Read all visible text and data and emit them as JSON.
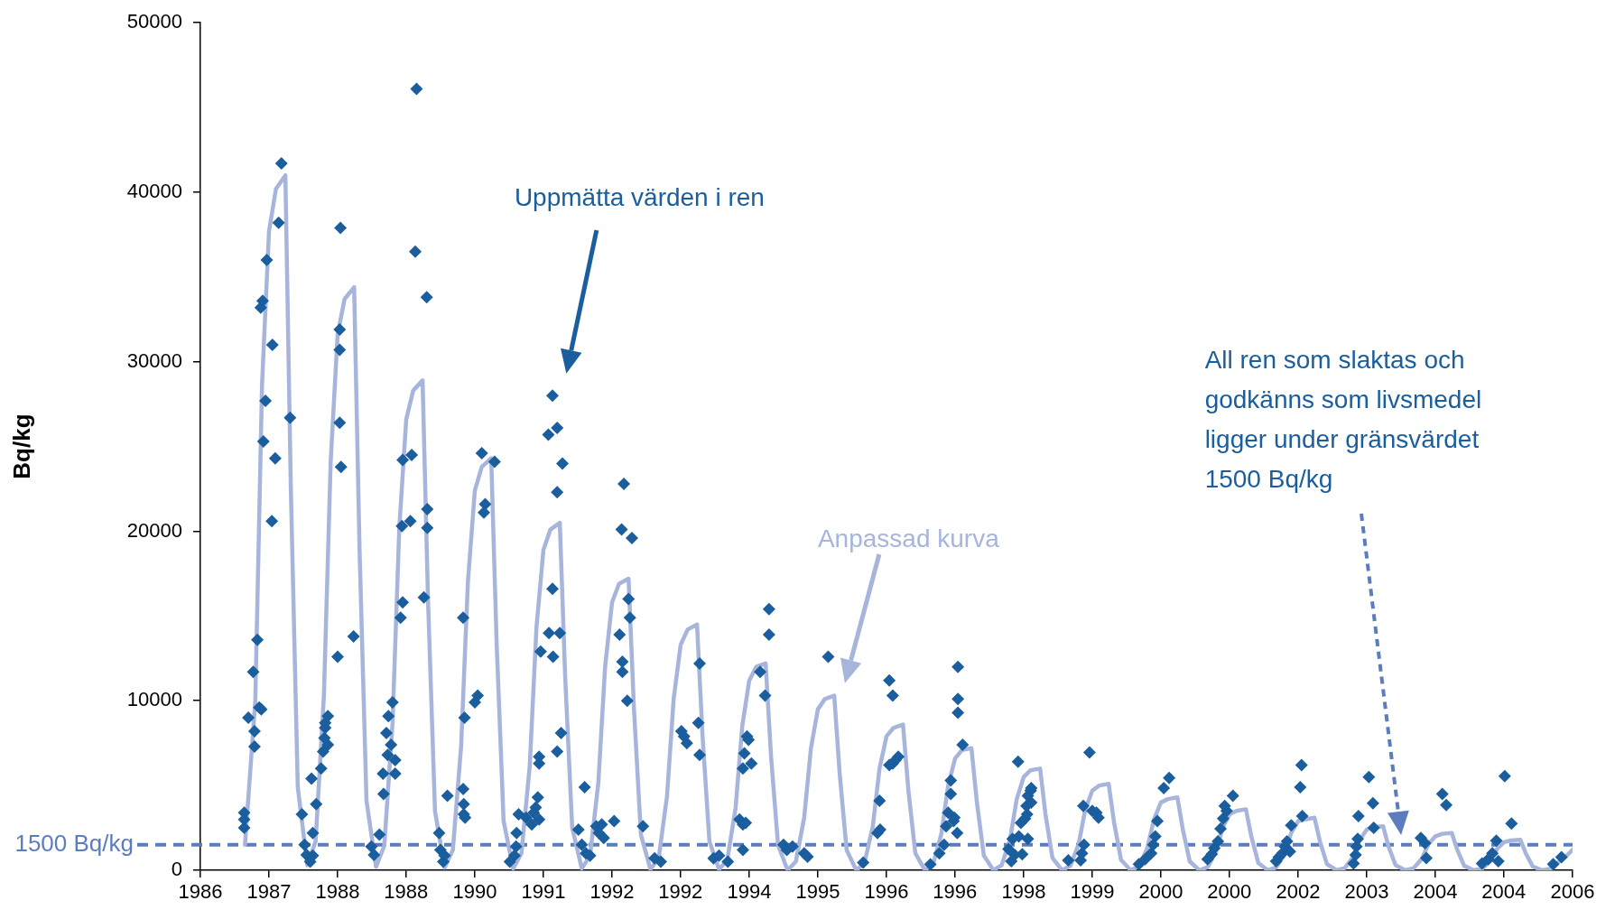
{
  "chart_data": {
    "type": "scatter",
    "ylabel": "Bq/kg",
    "legend": false,
    "grid": false,
    "marker": "diamond",
    "xlim": [
      "1986-01-01",
      "2006-01-01"
    ],
    "xticks": [
      {
        "value": "1986-01-01",
        "label": "1986"
      },
      {
        "value": "1987-01-01",
        "label": "1987"
      },
      {
        "value": "1988-01-01",
        "label": "1988"
      },
      {
        "value": "1988-12-31",
        "label": "1988"
      },
      {
        "value": "1990-01-01",
        "label": "1990"
      },
      {
        "value": "1991-01-01",
        "label": "1991"
      },
      {
        "value": "1992-01-01",
        "label": "1992"
      },
      {
        "value": "1992-12-31",
        "label": "1992"
      },
      {
        "value": "1994-01-01",
        "label": "1994"
      },
      {
        "value": "1995-01-01",
        "label": "1995"
      },
      {
        "value": "1996-01-01",
        "label": "1996"
      },
      {
        "value": "1996-12-31",
        "label": "1996"
      },
      {
        "value": "1998-01-01",
        "label": "1998"
      },
      {
        "value": "1999-01-01",
        "label": "1999"
      },
      {
        "value": "2000-01-01",
        "label": "2000"
      },
      {
        "value": "2000-12-31",
        "label": "2000"
      },
      {
        "value": "2002-01-01",
        "label": "2002"
      },
      {
        "value": "2003-01-01",
        "label": "2003"
      },
      {
        "value": "2004-01-01",
        "label": "2004"
      },
      {
        "value": "2004-12-31",
        "label": "2004"
      },
      {
        "value": "2006-01-01",
        "label": "2006"
      }
    ],
    "ylim": [
      0,
      50000
    ],
    "yticks": [
      0,
      10000,
      20000,
      30000,
      40000,
      50000
    ],
    "ref_lines": [
      {
        "axis": "y",
        "value": 1500,
        "label": "1500 Bq/kg",
        "color": "#5b7dbd",
        "line_style": "dashed"
      }
    ],
    "annotations": [
      "All ren som slaktas och godkänns som livsmedel ligger under gränsvärdet 1500 Bq/kg"
    ],
    "series": [
      {
        "name": "Anpassad kurva",
        "type": "line",
        "marker": "none",
        "line_style": "solid",
        "color": "#a7b5dc",
        "x": [
          "1986-08-26",
          "1986-10-20",
          "1986-11-25",
          "1987-01-01",
          "1987-02-07",
          "1987-03-29",
          "1987-04-27",
          "1987-06-03",
          "1987-07-24",
          "1987-09-06",
          "1987-10-20",
          "1987-11-25",
          "1988-01-01",
          "1988-02-07",
          "1988-03-29",
          "1988-04-27",
          "1988-06-03",
          "1988-07-24",
          "1988-09-06",
          "1988-10-20",
          "1988-11-25",
          "1989-01-01",
          "1989-02-07",
          "1989-03-29",
          "1989-04-27",
          "1989-06-03",
          "1989-07-24",
          "1989-09-06",
          "1989-10-20",
          "1989-11-25",
          "1990-01-01",
          "1990-02-07",
          "1990-03-29",
          "1990-04-27",
          "1990-06-03",
          "1990-07-24",
          "1990-09-06",
          "1990-10-20",
          "1990-11-25",
          "1991-01-01",
          "1991-02-07",
          "1991-03-29",
          "1991-04-27",
          "1991-06-03",
          "1991-07-24",
          "1991-09-06",
          "1991-10-20",
          "1991-11-25",
          "1992-01-01",
          "1992-02-07",
          "1992-03-29",
          "1992-04-27",
          "1992-06-03",
          "1992-07-24",
          "1992-09-06",
          "1992-10-20",
          "1992-11-25",
          "1993-01-01",
          "1993-02-07",
          "1993-03-29",
          "1993-04-27",
          "1993-06-03",
          "1993-07-24",
          "1993-09-06",
          "1993-10-20",
          "1993-11-25",
          "1994-01-01",
          "1994-02-07",
          "1994-03-29",
          "1994-04-27",
          "1994-06-03",
          "1994-07-24",
          "1994-09-06",
          "1994-10-20",
          "1994-11-25",
          "1995-01-01",
          "1995-02-07",
          "1995-03-29",
          "1995-04-27",
          "1995-06-03",
          "1995-07-24",
          "1995-09-06",
          "1995-10-20",
          "1995-11-25",
          "1996-01-01",
          "1996-02-07",
          "1996-03-29",
          "1996-04-27",
          "1996-06-03",
          "1996-07-24",
          "1996-09-06",
          "1996-10-20",
          "1996-11-25",
          "1997-01-01",
          "1997-02-07",
          "1997-03-29",
          "1997-04-27",
          "1997-06-03",
          "1997-07-24",
          "1997-09-06",
          "1997-10-20",
          "1997-11-25",
          "1998-01-01",
          "1998-02-07",
          "1998-03-29",
          "1998-04-27",
          "1998-06-03",
          "1998-07-24",
          "1998-09-06",
          "1998-10-20",
          "1998-11-25",
          "1999-01-01",
          "1999-02-07",
          "1999-03-29",
          "1999-04-27",
          "1999-06-03",
          "1999-07-24",
          "1999-09-06",
          "1999-10-20",
          "1999-11-25",
          "2000-01-01",
          "2000-02-07",
          "2000-03-29",
          "2000-04-27",
          "2000-06-03",
          "2000-07-24",
          "2000-09-06",
          "2000-10-20",
          "2000-11-25",
          "2001-01-01",
          "2001-02-07",
          "2001-03-29",
          "2001-04-27",
          "2001-06-03",
          "2001-07-24",
          "2001-09-06",
          "2001-10-20",
          "2001-11-25",
          "2002-01-01",
          "2002-02-07",
          "2002-03-29",
          "2002-04-27",
          "2002-06-03",
          "2002-07-24",
          "2002-09-06",
          "2002-10-20",
          "2002-11-25",
          "2003-01-01",
          "2003-02-07",
          "2003-03-29",
          "2003-04-27",
          "2003-06-03",
          "2003-07-24",
          "2003-09-06",
          "2003-10-20",
          "2003-11-25",
          "2004-01-01",
          "2004-02-07",
          "2004-03-29",
          "2004-04-27",
          "2004-06-03",
          "2004-07-24",
          "2004-09-06",
          "2004-10-20",
          "2004-11-25",
          "2005-01-01",
          "2005-02-07",
          "2005-03-29",
          "2005-04-27",
          "2005-06-03",
          "2005-07-24",
          "2005-09-06",
          "2005-10-20",
          "2005-11-25",
          "2006-01-01"
        ],
        "values": [
          1500,
          10000,
          28700,
          37700,
          40200,
          41000,
          22550,
          4900,
          300,
          1720,
          10300,
          24100,
          31600,
          33700,
          34400,
          18900,
          4100,
          200,
          1450,
          8700,
          20200,
          26600,
          28300,
          28900,
          15900,
          3500,
          150,
          1200,
          7300,
          17000,
          22400,
          23800,
          24300,
          13400,
          2900,
          100,
          1000,
          6150,
          14350,
          18900,
          20100,
          20500,
          11300,
          2500,
          100,
          860,
          5160,
          12000,
          15800,
          16900,
          17200,
          9500,
          2100,
          50,
          730,
          4350,
          10150,
          13300,
          14200,
          14500,
          8000,
          1700,
          50,
          610,
          3660,
          8540,
          11200,
          12000,
          12200,
          6700,
          1500,
          0,
          520,
          3090,
          7200,
          9500,
          10100,
          10300,
          5700,
          1200,
          0,
          430,
          2580,
          6000,
          7900,
          8400,
          8600,
          4700,
          1000,
          0,
          360,
          2160,
          5000,
          6600,
          7100,
          7200,
          4000,
          860,
          0,
          300,
          1800,
          4200,
          5500,
          5900,
          6000,
          3300,
          720,
          0,
          260,
          1530,
          3600,
          4700,
          5000,
          5100,
          2800,
          610,
          0,
          220,
          1290,
          3000,
          4000,
          4200,
          4300,
          2400,
          520,
          0,
          180,
          1080,
          2500,
          3300,
          3500,
          3600,
          2000,
          430,
          0,
          160,
          930,
          2200,
          2900,
          3000,
          3100,
          1700,
          370,
          0,
          130,
          780,
          1800,
          2400,
          2550,
          2600,
          1400,
          310,
          0,
          110,
          660,
          1540,
          2000,
          2150,
          2200,
          1200,
          260,
          0,
          90,
          540,
          1260,
          1660,
          1760,
          1800,
          1000,
          220,
          0,
          90,
          500,
          800,
          1200
        ]
      },
      {
        "name": "Uppmätta värden i ren",
        "type": "scatter",
        "color": "#1a5e9e",
        "x": [
          "1986-08-22",
          "1986-08-22",
          "1986-08-22",
          "1986-09-13",
          "1986-10-16",
          "1986-10-16",
          "1986-10-09",
          "1986-10-31",
          "1986-11-10",
          "1986-11-21",
          "1986-12-02",
          "1986-12-13",
          "1986-11-18",
          "1986-11-28",
          "1986-12-20",
          "1987-01-19",
          "1987-02-03",
          "1987-01-16",
          "1987-02-21",
          "1987-03-08",
          "1987-04-23",
          "1987-06-25",
          "1987-07-09",
          "1987-07-20",
          "1987-08-08",
          "1987-08-15",
          "1987-09-09",
          "1987-08-22",
          "1987-08-22",
          "1987-10-05",
          "1987-10-16",
          "1987-10-23",
          "1987-10-27",
          "1987-11-10",
          "1987-11-10",
          "1987-10-27",
          "1988-01-01",
          "1988-01-16",
          "1988-01-12",
          "1988-01-12",
          "1988-01-12",
          "1988-01-19",
          "1988-03-26",
          "1988-06-29",
          "1988-07-13",
          "1988-08-11",
          "1988-09-02",
          "1988-08-30",
          "1988-09-17",
          "1988-09-28",
          "1988-10-20",
          "1988-10-12",
          "1988-11-03",
          "1988-11-03",
          "1988-09-24",
          "1988-12-02",
          "1988-12-13",
          "1988-12-09",
          "1989-01-23",
          "1988-12-13",
          "1989-01-30",
          "1989-02-18",
          "1989-02-25",
          "1989-04-20",
          "1989-04-23",
          "1989-04-23",
          "1989-04-05",
          "1989-08-08",
          "1989-06-25",
          "1989-07-02",
          "1989-07-17",
          "1989-07-24",
          "1989-10-31",
          "1989-11-03",
          "1989-11-10",
          "1989-11-03",
          "1989-11-07",
          "1990-01-01",
          "1990-01-16",
          "1989-10-31",
          "1990-02-07",
          "1990-02-18",
          "1990-02-25",
          "1990-04-16",
          "1990-08-22",
          "1990-08-11",
          "1990-08-08",
          "1990-07-31",
          "1990-07-06",
          "1990-10-01",
          "1990-11-10",
          "1990-12-02",
          "1990-12-09",
          "1990-12-09",
          "1990-12-17",
          "1990-10-31",
          "1990-11-21",
          "1990-12-09",
          "1991-01-27",
          "1991-02-18",
          "1991-03-15",
          "1991-04-12",
          "1991-03-15",
          "1991-02-18",
          "1991-01-30",
          "1991-03-29",
          "1991-02-21",
          "1991-04-05",
          "1991-03-15",
          "1991-08-08",
          "1991-07-06",
          "1991-07-24",
          "1991-08-15",
          "1991-09-06",
          "1991-10-09",
          "1991-10-23",
          "1991-11-07",
          "1991-11-18",
          "1992-01-12",
          "1992-02-10",
          "1992-02-25",
          "1992-02-25",
          "1992-03-22",
          "1992-03-04",
          "1992-02-21",
          "1992-04-16",
          "1992-03-29",
          "1992-04-05",
          "1992-06-14",
          "1992-08-15",
          "1992-09-17",
          "1993-01-05",
          "1993-01-19",
          "1993-02-03",
          "1993-04-12",
          "1993-04-05",
          "1993-04-12",
          "1993-06-25",
          "1993-07-24",
          "1993-09-09",
          "1993-11-10",
          "1993-11-28",
          "1993-12-13",
          "1993-11-28",
          "1993-12-20",
          "1993-12-28",
          "1993-12-06",
          "1993-11-28",
          "1994-01-12",
          "1994-02-28",
          "1994-03-26",
          "1994-04-16",
          "1994-04-16",
          "1994-07-02",
          "1994-07-20",
          "1994-08-19",
          "1994-10-20",
          "1994-11-07",
          "1995-02-25",
          "1995-08-30",
          "1995-11-25",
          "1995-11-14",
          "1995-11-28",
          "1996-01-16",
          "1996-02-03",
          "1996-02-03",
          "1996-02-18",
          "1996-03-04",
          "1996-01-16",
          "1996-08-22",
          "1996-10-09",
          "1996-11-03",
          "1996-11-14",
          "1996-11-25",
          "1996-12-09",
          "1996-12-09",
          "1996-12-28",
          "1996-12-24",
          "1997-01-12",
          "1997-01-16",
          "1997-01-16",
          "1997-01-16",
          "1997-02-10",
          "1997-12-02",
          "1997-10-27",
          "1997-11-14",
          "1997-12-24",
          "1997-10-12",
          "1997-11-03",
          "1997-12-06",
          "1997-12-17",
          "1998-01-08",
          "1998-01-16",
          "1998-01-23",
          "1998-02-07",
          "1998-02-10",
          "1998-01-19",
          "1998-01-23",
          "1998-02-10",
          "1998-08-26",
          "1998-10-31",
          "1998-11-07",
          "1998-11-18",
          "1998-11-14",
          "1998-12-17",
          "1999-01-01",
          "1999-01-23",
          "1999-02-03",
          "1999-09-06",
          "1999-10-09",
          "1999-11-10",
          "1999-11-21",
          "1999-12-02",
          "1999-12-13",
          "2000-01-16",
          "2000-02-14",
          "2000-09-06",
          "2000-09-28",
          "2000-10-12",
          "2000-10-31",
          "2000-11-14",
          "2000-11-28",
          "2000-12-06",
          "2000-12-17",
          "2001-01-19",
          "2001-09-06",
          "2001-09-20",
          "2001-10-09",
          "2001-10-23",
          "2001-11-03",
          "2001-11-18",
          "2001-11-25",
          "2002-01-12",
          "2002-01-19",
          "2002-01-23",
          "2002-10-23",
          "2002-11-03",
          "2002-11-07",
          "2002-11-14",
          "2002-11-18",
          "2003-01-12",
          "2003-02-03",
          "2003-02-07",
          "2003-10-16",
          "2003-11-07",
          "2003-11-14",
          "2004-02-07",
          "2004-02-28",
          "2004-09-06",
          "2004-10-09",
          "2004-10-31",
          "2004-11-21",
          "2004-12-02",
          "2005-01-05",
          "2005-02-10",
          "2005-09-20",
          "2005-11-03"
        ],
        "values": [
          3400,
          3000,
          2500,
          9000,
          8200,
          7300,
          11700,
          13600,
          9600,
          9500,
          25300,
          27700,
          33200,
          33600,
          36000,
          31000,
          24300,
          20600,
          38200,
          41700,
          26700,
          3300,
          1500,
          900,
          500,
          5400,
          3900,
          2200,
          860,
          6000,
          7000,
          7800,
          8400,
          9100,
          7400,
          8700,
          12600,
          37900,
          31900,
          30700,
          26400,
          23800,
          13800,
          1400,
          900,
          2100,
          4500,
          5700,
          8100,
          9100,
          9900,
          7400,
          6500,
          5700,
          6800,
          14900,
          15800,
          20300,
          20600,
          24200,
          24500,
          36500,
          46100,
          33800,
          21300,
          20200,
          16100,
          4400,
          2200,
          1200,
          500,
          860,
          4800,
          3900,
          3100,
          3300,
          9000,
          9900,
          10300,
          14900,
          24600,
          21100,
          21600,
          24100,
          3300,
          2200,
          1400,
          860,
          500,
          3100,
          3400,
          4300,
          6700,
          6300,
          12900,
          2700,
          3700,
          3000,
          25700,
          28000,
          26100,
          24000,
          22300,
          16600,
          14000,
          14000,
          12600,
          8100,
          7000,
          4900,
          2400,
          1500,
          1000,
          860,
          2600,
          2200,
          2700,
          1900,
          2900,
          13900,
          12300,
          11700,
          10000,
          22800,
          20100,
          19600,
          16000,
          14900,
          2600,
          700,
          500,
          8200,
          7900,
          7500,
          12200,
          8700,
          6800,
          700,
          860,
          500,
          3000,
          2700,
          2800,
          1200,
          7900,
          7700,
          6900,
          6000,
          6300,
          11700,
          10300,
          15400,
          13900,
          1500,
          1200,
          1400,
          1000,
          800,
          12600,
          450,
          4100,
          2200,
          2400,
          11200,
          10300,
          6300,
          6500,
          6700,
          6200,
          350,
          1000,
          1500,
          2600,
          3400,
          5300,
          4500,
          3100,
          2900,
          2200,
          12000,
          10100,
          9300,
          7400,
          6400,
          530,
          900,
          940,
          1250,
          1850,
          2000,
          2800,
          3050,
          3800,
          4400,
          4700,
          4000,
          3300,
          1850,
          4850,
          580,
          580,
          1000,
          1500,
          3800,
          6950,
          3500,
          3400,
          3100,
          360,
          650,
          1000,
          1500,
          2000,
          2900,
          4850,
          5450,
          650,
          940,
          1300,
          1700,
          2450,
          3050,
          3800,
          3500,
          4400,
          530,
          770,
          1000,
          1400,
          1700,
          1100,
          2650,
          4900,
          6200,
          3200,
          400,
          900,
          1400,
          1850,
          3200,
          5500,
          3950,
          2500,
          1900,
          1600,
          720,
          4500,
          3850,
          400,
          650,
          1000,
          1750,
          530,
          5550,
          2750,
          360,
          770
        ]
      }
    ]
  }
}
